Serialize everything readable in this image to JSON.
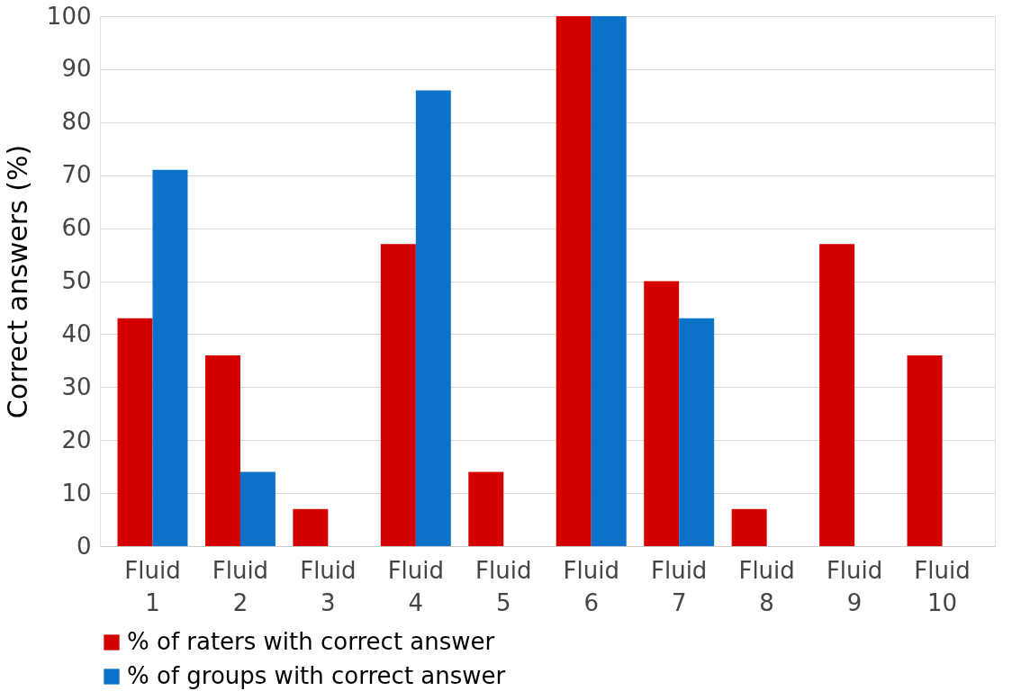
{
  "chart_data": {
    "type": "bar",
    "ylabel": "Correct answers (%)",
    "categories": [
      "Fluid 1",
      "Fluid 2",
      "Fluid 3",
      "Fluid 4",
      "Fluid 5",
      "Fluid 6",
      "Fluid 7",
      "Fluid 8",
      "Fluid 9",
      "Fluid 10"
    ],
    "series": [
      {
        "name": "% of raters with correct answer",
        "color": "#d40000",
        "values": [
          43,
          36,
          7,
          57,
          14,
          100,
          50,
          7,
          57,
          36
        ]
      },
      {
        "name": "% of groups with correct answer",
        "color": "#0a72c8",
        "values": [
          71,
          14,
          null,
          86,
          null,
          100,
          43,
          null,
          null,
          null
        ]
      }
    ],
    "ylim": [
      0,
      100
    ],
    "yticks": [
      0,
      10,
      20,
      30,
      40,
      50,
      60,
      70,
      80,
      90,
      100
    ],
    "grid": "y",
    "legend": "bottom"
  }
}
